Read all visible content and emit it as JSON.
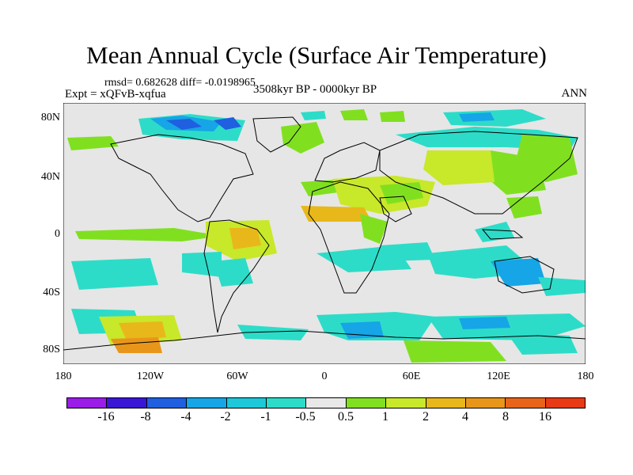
{
  "title": "Mean Annual Cycle (Surface Air Temperature)",
  "stats_line": "rmsd= 0.682628 diff= -0.0198965",
  "expt_line": "Expt = xQFvB-xqfua",
  "period": "3508kyr BP - 0000kyr BP",
  "season": "ANN",
  "y_axis": {
    "labels": [
      "80N",
      "40N",
      "0",
      "40S",
      "80S"
    ]
  },
  "x_axis": {
    "labels": [
      "180",
      "120W",
      "60W",
      "0",
      "60E",
      "120E",
      "180"
    ]
  },
  "colorbar": {
    "colors": [
      "#9b1de8",
      "#3a17d6",
      "#1f5fe0",
      "#16a5e6",
      "#1dc8d8",
      "#2ddcc8",
      "#e8e8e8",
      "#80e020",
      "#c8e82a",
      "#e8b81a",
      "#e8961a",
      "#e8641a",
      "#e83a14"
    ],
    "labels": [
      "-16",
      "-8",
      "-4",
      "-2",
      "-1",
      "-0.5",
      "0.5",
      "1",
      "2",
      "4",
      "8",
      "16"
    ]
  },
  "map": {
    "background": "#e6e6e6"
  }
}
